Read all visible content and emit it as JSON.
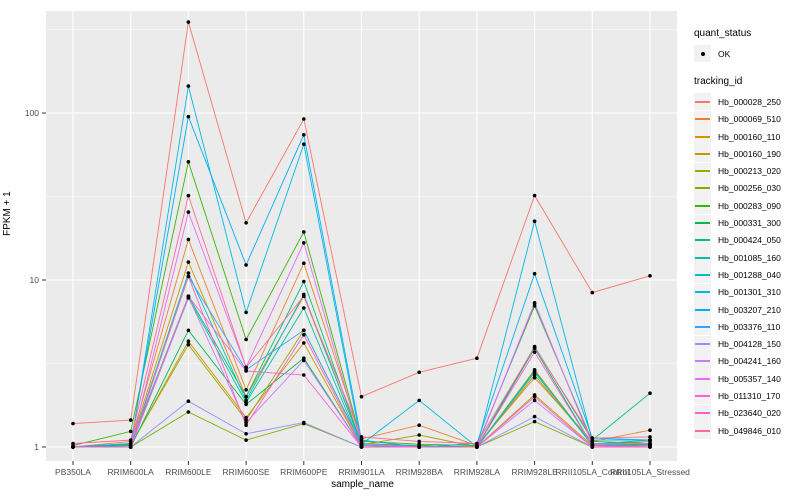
{
  "chart_data": {
    "type": "line",
    "title": "",
    "xlabel": "sample_name",
    "ylabel": "FPKM + 1",
    "y_scale": "log10",
    "y_ticks": [
      1,
      10,
      100
    ],
    "y_minor_ticks": [
      3.162,
      31.62,
      316.2
    ],
    "ylim_log10": [
      -0.09,
      2.61
    ],
    "grid": "on",
    "panel_bg": "#EBEBEB",
    "grid_color": "#FFFFFF",
    "point_color": "#000000",
    "tick_label_color": "#4D4D4D",
    "legend_position": "right",
    "categories": [
      "PB350LA",
      "RRIM600LA",
      "RRIM600LE",
      "RRIM600SE",
      "RRIM600PE",
      "RRIM901LA",
      "RRIM928BA",
      "RRIM928LA",
      "RRIM928LE",
      "RRII105LA_Control",
      "RRII105LA_Stressed"
    ],
    "legend": {
      "quant_status_title": "quant_status",
      "quant_status_items": [
        "OK"
      ],
      "tracking_title": "tracking_id"
    },
    "series": [
      {
        "name": "Hb_000028_250",
        "color": "#F8766D",
        "values": [
          1.38,
          1.45,
          350,
          22,
          92,
          2.0,
          2.8,
          3.4,
          32,
          8.4,
          10.6
        ]
      },
      {
        "name": "Hb_000069_510",
        "color": "#EA8331",
        "values": [
          1.0,
          1.08,
          17.5,
          2.2,
          12.6,
          1.12,
          1.35,
          1.02,
          2.6,
          1.08,
          1.26
        ]
      },
      {
        "name": "Hb_000160_110",
        "color": "#D89000",
        "values": [
          1.0,
          1.05,
          12.8,
          2.0,
          8.0,
          1.05,
          1.02,
          1.0,
          2.9,
          1.03,
          1.08
        ]
      },
      {
        "name": "Hb_000160_190",
        "color": "#C09B00",
        "values": [
          1.0,
          1.02,
          4.3,
          1.5,
          4.2,
          1.0,
          1.02,
          1.0,
          2.05,
          1.02,
          1.04
        ]
      },
      {
        "name": "Hb_000213_020",
        "color": "#A3A500",
        "values": [
          1.0,
          1.03,
          4.1,
          1.45,
          5.0,
          1.03,
          1.18,
          1.0,
          2.7,
          1.04,
          1.05
        ]
      },
      {
        "name": "Hb_000256_030",
        "color": "#7CAE00",
        "values": [
          1.0,
          1.0,
          1.62,
          1.1,
          1.38,
          1.0,
          1.0,
          1.0,
          1.42,
          1.0,
          1.02
        ]
      },
      {
        "name": "Hb_000283_090",
        "color": "#39B600",
        "values": [
          1.02,
          1.24,
          51,
          4.4,
          19.4,
          1.08,
          1.04,
          1.02,
          7.0,
          1.08,
          1.05
        ]
      },
      {
        "name": "Hb_000331_300",
        "color": "#00BB4E",
        "values": [
          1.0,
          1.0,
          5.0,
          1.8,
          3.4,
          1.0,
          1.0,
          1.0,
          3.9,
          1.02,
          1.03
        ]
      },
      {
        "name": "Hb_000424_050",
        "color": "#00BF7D",
        "values": [
          1.0,
          1.04,
          8.0,
          2.0,
          9.8,
          1.04,
          1.02,
          1.0,
          4.0,
          1.1,
          2.1
        ]
      },
      {
        "name": "Hb_001085_160",
        "color": "#00C1A3",
        "values": [
          1.0,
          1.0,
          7.8,
          1.85,
          6.8,
          1.0,
          1.0,
          1.0,
          2.8,
          1.04,
          1.1
        ]
      },
      {
        "name": "Hb_001288_040",
        "color": "#00BFC4",
        "values": [
          1.0,
          1.02,
          11.0,
          1.9,
          8.2,
          1.02,
          1.0,
          1.0,
          2.85,
          1.02,
          1.05
        ]
      },
      {
        "name": "Hb_001301_310",
        "color": "#00BAE0",
        "values": [
          1.0,
          1.0,
          145,
          6.4,
          65,
          1.04,
          1.9,
          1.0,
          22.5,
          1.1,
          1.1
        ]
      },
      {
        "name": "Hb_003207_210",
        "color": "#00B0F6",
        "values": [
          1.0,
          1.05,
          95,
          12.3,
          74,
          1.1,
          1.0,
          1.05,
          10.9,
          1.13,
          1.1
        ]
      },
      {
        "name": "Hb_003376_110",
        "color": "#35A2FF",
        "values": [
          1.0,
          1.0,
          10.5,
          2.9,
          5.0,
          1.04,
          1.0,
          1.0,
          7.2,
          1.05,
          1.04
        ]
      },
      {
        "name": "Hb_004128_150",
        "color": "#9590FF",
        "values": [
          1.0,
          1.0,
          1.88,
          1.2,
          1.4,
          1.0,
          1.0,
          1.0,
          1.52,
          1.0,
          1.0
        ]
      },
      {
        "name": "Hb_004241_160",
        "color": "#C77CFF",
        "values": [
          1.0,
          1.0,
          7.9,
          1.4,
          3.3,
          1.0,
          1.0,
          1.0,
          1.9,
          1.0,
          1.02
        ]
      },
      {
        "name": "Hb_005357_140",
        "color": "#E76BF3",
        "values": [
          1.0,
          1.0,
          25.5,
          3.0,
          16.7,
          1.04,
          1.0,
          1.0,
          7.3,
          1.04,
          1.05
        ]
      },
      {
        "name": "Hb_011310_170",
        "color": "#FA62DB",
        "values": [
          1.0,
          1.0,
          8.0,
          2.85,
          2.7,
          1.0,
          1.0,
          1.0,
          3.7,
          1.02,
          1.0
        ]
      },
      {
        "name": "Hb_023640_020",
        "color": "#FF62BC",
        "values": [
          1.0,
          1.0,
          10.5,
          1.35,
          4.7,
          1.0,
          1.0,
          1.0,
          2.0,
          1.0,
          1.0
        ]
      },
      {
        "name": "Hb_049846_010",
        "color": "#FF6A98",
        "values": [
          1.05,
          1.1,
          32,
          3.0,
          8.0,
          1.15,
          1.08,
          1.05,
          3.96,
          1.13,
          1.15
        ]
      }
    ]
  }
}
